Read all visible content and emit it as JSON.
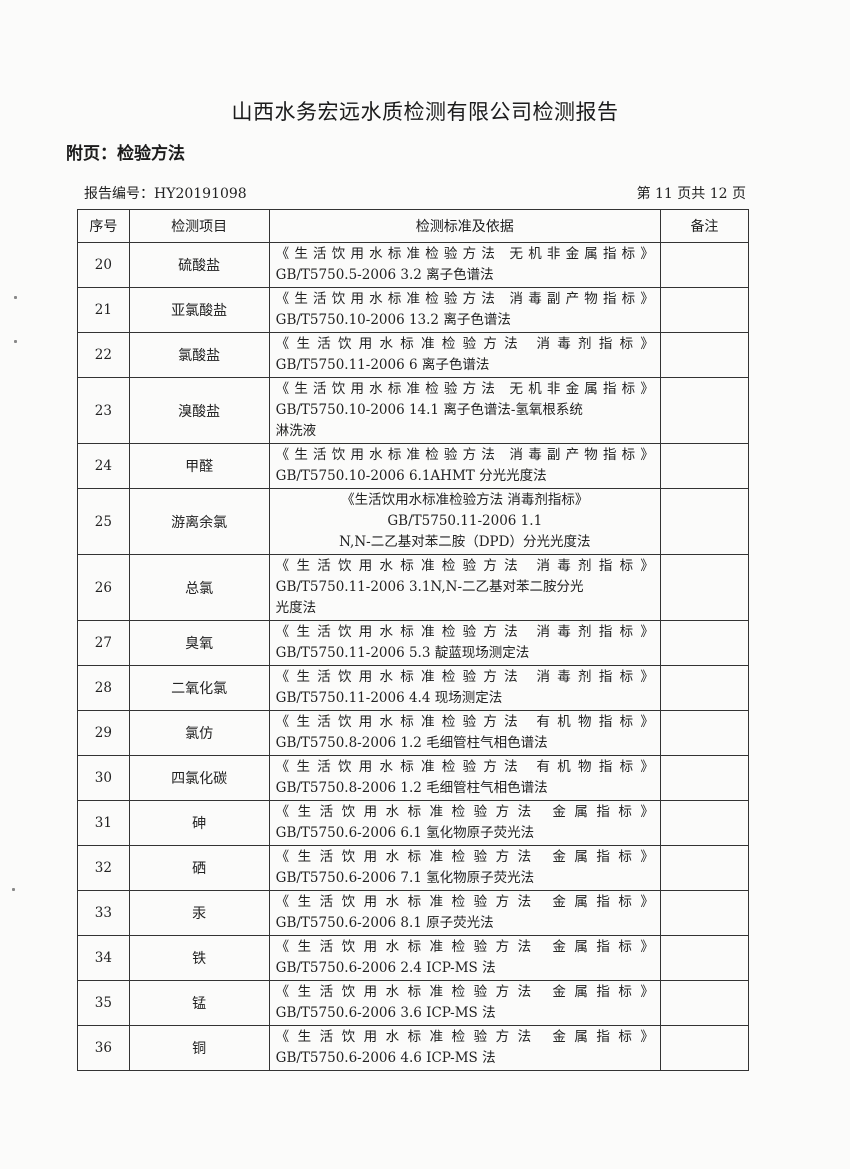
{
  "header": {
    "title": "山西水务宏远水质检测有限公司检测报告",
    "subtitle": "附页：检验方法",
    "report_number": "报告编号：HY20191098",
    "page_info": "第 11 页共 12 页"
  },
  "table": {
    "columns": [
      "序号",
      "检测项目",
      "检测标准及依据",
      "备注"
    ],
    "rows": [
      {
        "no": "20",
        "item": "硫酸盐",
        "lines": [
          "《生活饮用水标准检验方法 无机非金属指标》",
          "GB/T5750.5-2006  3.2 离子色谱法"
        ],
        "note": ""
      },
      {
        "no": "21",
        "item": "亚氯酸盐",
        "lines": [
          "《生活饮用水标准检验方法 消毒副产物指标》",
          "GB/T5750.10-2006  13.2 离子色谱法"
        ],
        "note": ""
      },
      {
        "no": "22",
        "item": "氯酸盐",
        "lines": [
          "《生活饮用水标准检验方法  消毒剂指标》",
          "GB/T5750.11-2006  6 离子色谱法"
        ],
        "note": ""
      },
      {
        "no": "23",
        "item": "溴酸盐",
        "lines": [
          "《生活饮用水标准检验方法 无机非金属指标》",
          "GB/T5750.10-2006  14.1 离子色谱法-氢氧根系统",
          "淋洗液"
        ],
        "note": ""
      },
      {
        "no": "24",
        "item": "甲醛",
        "lines": [
          "《生活饮用水标准检验方法 消毒副产物指标》",
          "GB/T5750.10-2006  6.1AHMT 分光光度法"
        ],
        "note": ""
      },
      {
        "no": "25",
        "item": "游离余氯",
        "lines": [
          "《生活饮用水标准检验方法 消毒剂指标》",
          "GB/T5750.11-2006 1.1",
          "N,N-二乙基对苯二胺（DPD）分光光度法"
        ],
        "note": "",
        "centered": true
      },
      {
        "no": "26",
        "item": "总氯",
        "lines": [
          "《生活饮用水标准检验方法  消毒剂指标》",
          "GB/T5750.11-2006  3.1N,N-二乙基对苯二胺分光",
          "光度法"
        ],
        "note": ""
      },
      {
        "no": "27",
        "item": "臭氧",
        "lines": [
          "《生活饮用水标准检验方法  消毒剂指标》",
          "GB/T5750.11-2006  5.3 靛蓝现场测定法"
        ],
        "note": ""
      },
      {
        "no": "28",
        "item": "二氧化氯",
        "lines": [
          "《生活饮用水标准检验方法  消毒剂指标》",
          "GB/T5750.11-2006  4.4 现场测定法"
        ],
        "note": ""
      },
      {
        "no": "29",
        "item": "氯仿",
        "lines": [
          "《生活饮用水标准检验方法  有机物指标》",
          "GB/T5750.8-2006  1.2 毛细管柱气相色谱法"
        ],
        "note": ""
      },
      {
        "no": "30",
        "item": "四氯化碳",
        "lines": [
          "《生活饮用水标准检验方法  有机物指标》",
          "GB/T5750.8-2006  1.2 毛细管柱气相色谱法"
        ],
        "note": ""
      },
      {
        "no": "31",
        "item": "砷",
        "lines": [
          "《生活饮用水标准检验方法  金属指标》",
          "GB/T5750.6-2006  6.1 氢化物原子荧光法"
        ],
        "note": ""
      },
      {
        "no": "32",
        "item": "硒",
        "lines": [
          "《生活饮用水标准检验方法  金属指标》",
          "GB/T5750.6-2006  7.1 氢化物原子荧光法"
        ],
        "note": ""
      },
      {
        "no": "33",
        "item": "汞",
        "lines": [
          "《生活饮用水标准检验方法  金属指标》",
          "GB/T5750.6-2006  8.1 原子荧光法"
        ],
        "note": ""
      },
      {
        "no": "34",
        "item": "铁",
        "lines": [
          "《生活饮用水标准检验方法  金属指标》",
          "GB/T5750.6-2006  2.4 ICP-MS 法"
        ],
        "note": ""
      },
      {
        "no": "35",
        "item": "锰",
        "lines": [
          "《生活饮用水标准检验方法  金属指标》",
          "GB/T5750.6-2006  3.6 ICP-MS 法"
        ],
        "note": ""
      },
      {
        "no": "36",
        "item": "铜",
        "lines": [
          "《生活饮用水标准检验方法  金属指标》",
          "GB/T5750.6-2006  4.6 ICP-MS 法"
        ],
        "note": ""
      }
    ]
  }
}
